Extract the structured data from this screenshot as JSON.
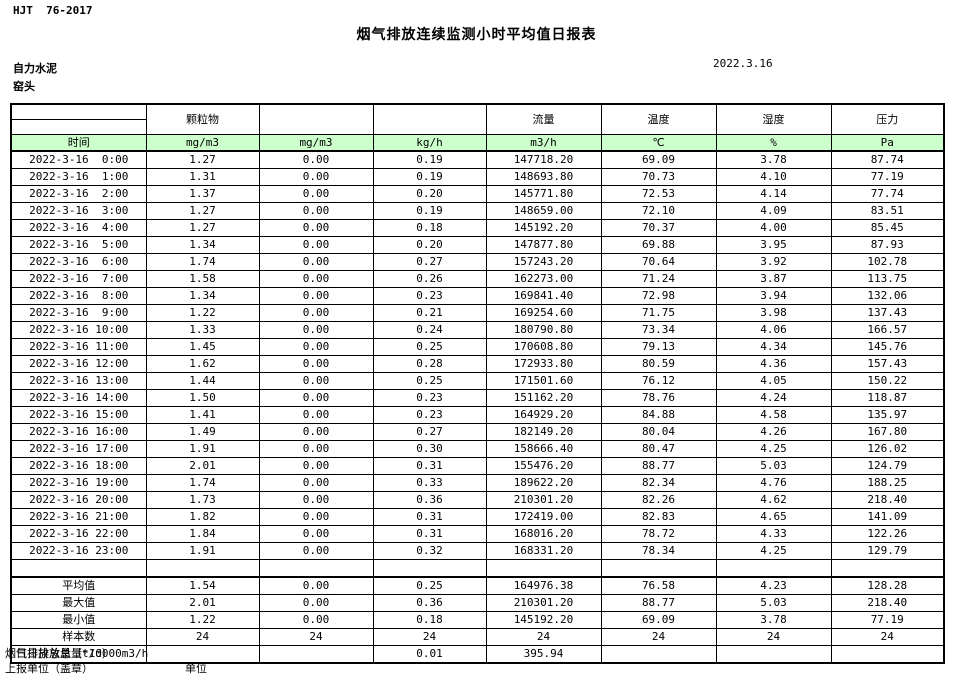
{
  "page": {
    "standard": "HJT  76-2017",
    "title": "烟气排放连续监测小时平均值日报表",
    "company": "自力水泥",
    "station": "窑头",
    "date": "2022.3.16"
  },
  "table": {
    "group_headers": [
      "",
      "颗粒物",
      "",
      "",
      "流量",
      "温度",
      "湿度",
      "压力"
    ],
    "unit_row": [
      "时间",
      "mg/m3",
      "mg/m3",
      "kg/h",
      "m3/h",
      "℃",
      "%",
      "Pa"
    ],
    "rows": [
      [
        "2022-3-16  0:00",
        "1.27",
        "0.00",
        "0.19",
        "147718.20",
        "69.09",
        "3.78",
        "87.74"
      ],
      [
        "2022-3-16  1:00",
        "1.31",
        "0.00",
        "0.19",
        "148693.80",
        "70.73",
        "4.10",
        "77.19"
      ],
      [
        "2022-3-16  2:00",
        "1.37",
        "0.00",
        "0.20",
        "145771.80",
        "72.53",
        "4.14",
        "77.74"
      ],
      [
        "2022-3-16  3:00",
        "1.27",
        "0.00",
        "0.19",
        "148659.00",
        "72.10",
        "4.09",
        "83.51"
      ],
      [
        "2022-3-16  4:00",
        "1.27",
        "0.00",
        "0.18",
        "145192.20",
        "70.37",
        "4.00",
        "85.45"
      ],
      [
        "2022-3-16  5:00",
        "1.34",
        "0.00",
        "0.20",
        "147877.80",
        "69.88",
        "3.95",
        "87.93"
      ],
      [
        "2022-3-16  6:00",
        "1.74",
        "0.00",
        "0.27",
        "157243.20",
        "70.64",
        "3.92",
        "102.78"
      ],
      [
        "2022-3-16  7:00",
        "1.58",
        "0.00",
        "0.26",
        "162273.00",
        "71.24",
        "3.87",
        "113.75"
      ],
      [
        "2022-3-16  8:00",
        "1.34",
        "0.00",
        "0.23",
        "169841.40",
        "72.98",
        "3.94",
        "132.06"
      ],
      [
        "2022-3-16  9:00",
        "1.22",
        "0.00",
        "0.21",
        "169254.60",
        "71.75",
        "3.98",
        "137.43"
      ],
      [
        "2022-3-16 10:00",
        "1.33",
        "0.00",
        "0.24",
        "180790.80",
        "73.34",
        "4.06",
        "166.57"
      ],
      [
        "2022-3-16 11:00",
        "1.45",
        "0.00",
        "0.25",
        "170608.80",
        "79.13",
        "4.34",
        "145.76"
      ],
      [
        "2022-3-16 12:00",
        "1.62",
        "0.00",
        "0.28",
        "172933.80",
        "80.59",
        "4.36",
        "157.43"
      ],
      [
        "2022-3-16 13:00",
        "1.44",
        "0.00",
        "0.25",
        "171501.60",
        "76.12",
        "4.05",
        "150.22"
      ],
      [
        "2022-3-16 14:00",
        "1.50",
        "0.00",
        "0.23",
        "151162.20",
        "78.76",
        "4.24",
        "118.87"
      ],
      [
        "2022-3-16 15:00",
        "1.41",
        "0.00",
        "0.23",
        "164929.20",
        "84.88",
        "4.58",
        "135.97"
      ],
      [
        "2022-3-16 16:00",
        "1.49",
        "0.00",
        "0.27",
        "182149.20",
        "80.04",
        "4.26",
        "167.80"
      ],
      [
        "2022-3-16 17:00",
        "1.91",
        "0.00",
        "0.30",
        "158666.40",
        "80.47",
        "4.25",
        "126.02"
      ],
      [
        "2022-3-16 18:00",
        "2.01",
        "0.00",
        "0.31",
        "155476.20",
        "88.77",
        "5.03",
        "124.79"
      ],
      [
        "2022-3-16 19:00",
        "1.74",
        "0.00",
        "0.33",
        "189622.20",
        "82.34",
        "4.76",
        "188.25"
      ],
      [
        "2022-3-16 20:00",
        "1.73",
        "0.00",
        "0.36",
        "210301.20",
        "82.26",
        "4.62",
        "218.40"
      ],
      [
        "2022-3-16 21:00",
        "1.82",
        "0.00",
        "0.31",
        "172419.00",
        "82.83",
        "4.65",
        "141.09"
      ],
      [
        "2022-3-16 22:00",
        "1.84",
        "0.00",
        "0.31",
        "168016.20",
        "78.72",
        "4.33",
        "122.26"
      ],
      [
        "2022-3-16 23:00",
        "1.91",
        "0.00",
        "0.32",
        "168331.20",
        "78.34",
        "4.25",
        "129.79"
      ]
    ],
    "summary": [
      [
        "平均值",
        "1.54",
        "0.00",
        "0.25",
        "164976.38",
        "76.58",
        "4.23",
        "128.28"
      ],
      [
        "最大值",
        "2.01",
        "0.00",
        "0.36",
        "210301.20",
        "88.77",
        "5.03",
        "218.40"
      ],
      [
        "最小值",
        "1.22",
        "0.00",
        "0.18",
        "145192.20",
        "69.09",
        "3.78",
        "77.19"
      ],
      [
        "样本数",
        "24",
        "24",
        "24",
        "24",
        "24",
        "24",
        "24"
      ],
      [
        "日排放总量（t/d）",
        "",
        "",
        "0.01",
        "395.94",
        "",
        "",
        ""
      ]
    ]
  },
  "footer": {
    "note": "烟气日排放总量*10000m3/h",
    "report_unit_label": "上报单位（盖章）",
    "unit_label": "单位"
  },
  "colors": {
    "header_green": "#ccffcc",
    "border": "#000000"
  }
}
